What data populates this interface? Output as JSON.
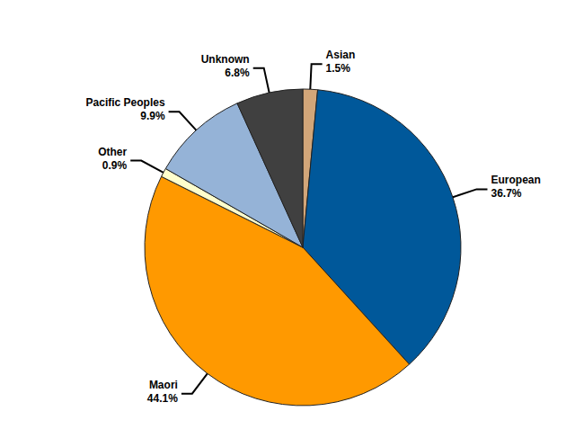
{
  "chart_data": {
    "type": "pie",
    "categories": [
      "Asian",
      "European",
      "Maori",
      "Other",
      "Pacific Peoples",
      "Unknown"
    ],
    "values": [
      1.5,
      36.7,
      44.1,
      0.9,
      9.9,
      6.8
    ],
    "value_labels": [
      "1.5%",
      "36.7%",
      "44.1%",
      "0.9%",
      "9.9%",
      "6.8%"
    ],
    "colors": [
      "#D2A679",
      "#00589A",
      "#FF9900",
      "#FFFFCC",
      "#95B3D7",
      "#404040"
    ],
    "data_labels": true
  }
}
